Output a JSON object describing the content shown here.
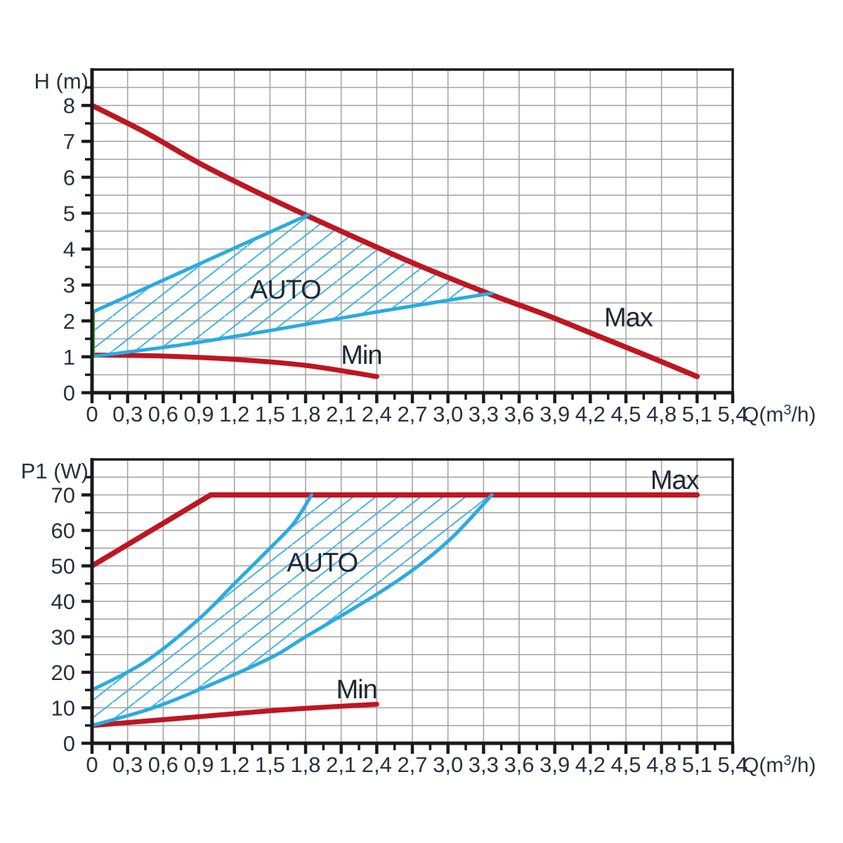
{
  "colors": {
    "red": "#be1622",
    "blue": "#29abe2",
    "hatch": "#41b3e6",
    "green": "#3aaa35",
    "text": "#273140",
    "grid": "#a1a1a0",
    "axis": "#1a1a1a",
    "background": "#ffffff"
  },
  "chart_data": [
    {
      "type": "line",
      "name": "head-vs-flow",
      "ylabel": "H (m)",
      "xlabel": {
        "pre": "Q(m",
        "sup": "3",
        "post": "/h)"
      },
      "legend_position": "none",
      "grid": true,
      "x_axis": {
        "min": 0,
        "max": 5.4,
        "major_step": 0.3,
        "minor_step": 0.15,
        "grid_step": 0.3,
        "tick_labels": [
          "0",
          "0,3",
          "0,6",
          "0,9",
          "1,2",
          "1,5",
          "1,8",
          "2,1",
          "2,4",
          "2,7",
          "3,0",
          "3,3",
          "3,6",
          "3,9",
          "4,2",
          "4,5",
          "4,8",
          "5,1",
          "5,4"
        ]
      },
      "y_axis": {
        "min": 0,
        "max": 9,
        "major_step": 1,
        "minor_step": 0.5,
        "grid_step": 0.5,
        "label_max": 8,
        "tick_labels": [
          "0",
          "1",
          "2",
          "3",
          "4",
          "5",
          "6",
          "7",
          "8"
        ]
      },
      "series": [
        {
          "name": "Max",
          "color": "red",
          "width": 7.5,
          "smooth": true,
          "points": [
            [
              0,
              8.0
            ],
            [
              0.45,
              7.25
            ],
            [
              0.9,
              6.4
            ],
            [
              1.35,
              5.65
            ],
            [
              1.8,
              4.95
            ],
            [
              2.3,
              4.2
            ],
            [
              2.75,
              3.55
            ],
            [
              3.35,
              2.75
            ],
            [
              3.8,
              2.2
            ],
            [
              4.25,
              1.6
            ],
            [
              4.7,
              1.0
            ],
            [
              5.1,
              0.45
            ]
          ]
        },
        {
          "name": "Min",
          "color": "red",
          "width": 7,
          "smooth": true,
          "points": [
            [
              0,
              1.05
            ],
            [
              0.6,
              1.02
            ],
            [
              1.2,
              0.93
            ],
            [
              1.8,
              0.76
            ],
            [
              2.4,
              0.45
            ]
          ]
        },
        {
          "name": "auto-upper",
          "color": "blue",
          "width": 5,
          "smooth": false,
          "points": [
            [
              0,
              2.24
            ],
            [
              0.9,
              3.58
            ],
            [
              1.82,
              4.95
            ]
          ]
        },
        {
          "name": "auto-lower",
          "color": "blue",
          "width": 5,
          "smooth": true,
          "points": [
            [
              0.03,
              1.02
            ],
            [
              0.75,
              1.33
            ],
            [
              1.5,
              1.73
            ],
            [
              2.4,
              2.25
            ],
            [
              3.37,
              2.77
            ]
          ]
        },
        {
          "name": "auto-left-edge",
          "color": "green",
          "width": 3,
          "smooth": false,
          "points": [
            [
              0.015,
              1.05
            ],
            [
              0.015,
              2.22
            ]
          ]
        }
      ],
      "auto_region": {
        "points": [
          [
            0.015,
            1.03
          ],
          [
            0.75,
            1.33
          ],
          [
            1.5,
            1.73
          ],
          [
            2.4,
            2.25
          ],
          [
            3.37,
            2.77
          ],
          [
            3.0,
            3.2
          ],
          [
            2.6,
            3.77
          ],
          [
            2.2,
            4.33
          ],
          [
            1.82,
            4.95
          ],
          [
            0.9,
            3.58
          ],
          [
            0.015,
            2.24
          ]
        ]
      },
      "labels": [
        {
          "text": "AUTO",
          "x": 1.63,
          "y": 2.88,
          "size": 38
        },
        {
          "text": "Max",
          "x": 4.52,
          "y": 2.1,
          "size": 38
        },
        {
          "text": "Min",
          "x": 2.27,
          "y": 1.06,
          "size": 38
        }
      ]
    },
    {
      "type": "line",
      "name": "power-vs-flow",
      "ylabel": "P1 (W)",
      "xlabel": {
        "pre": "Q(m",
        "sup": "3",
        "post": "/h)"
      },
      "legend_position": "none",
      "grid": true,
      "x_axis": {
        "min": 0,
        "max": 5.4,
        "major_step": 0.3,
        "minor_step": 0.15,
        "grid_step": 0.3,
        "tick_labels": [
          "0",
          "0,3",
          "0,6",
          "0,9",
          "1,2",
          "1,5",
          "1,8",
          "2,1",
          "2,4",
          "2,7",
          "3,0",
          "3,3",
          "3,6",
          "3,9",
          "4,2",
          "4,5",
          "4,8",
          "5,1",
          "5,4"
        ]
      },
      "y_axis": {
        "min": 0,
        "max": 80,
        "major_step": 10,
        "minor_step": 5,
        "grid_step": 5,
        "label_max": 70,
        "tick_labels": [
          "0",
          "10",
          "20",
          "30",
          "40",
          "50",
          "60",
          "70"
        ]
      },
      "series": [
        {
          "name": "Max",
          "color": "red",
          "width": 7.5,
          "smooth": false,
          "points": [
            [
              0,
              50
            ],
            [
              1.0,
              70
            ],
            [
              5.1,
              70
            ]
          ]
        },
        {
          "name": "Min",
          "color": "red",
          "width": 7,
          "smooth": true,
          "points": [
            [
              0,
              5
            ],
            [
              0.8,
              7.2
            ],
            [
              1.6,
              9.4
            ],
            [
              2.4,
              11
            ]
          ]
        },
        {
          "name": "auto-upper",
          "color": "blue",
          "width": 5,
          "smooth": true,
          "points": [
            [
              0,
              15
            ],
            [
              0.45,
              23
            ],
            [
              0.9,
              35
            ],
            [
              1.2,
              45
            ],
            [
              1.5,
              55
            ],
            [
              1.7,
              62
            ],
            [
              1.85,
              70
            ]
          ]
        },
        {
          "name": "auto-lower",
          "color": "blue",
          "width": 5,
          "smooth": true,
          "points": [
            [
              0,
              5
            ],
            [
              0.5,
              9.8
            ],
            [
              0.93,
              15.5
            ],
            [
              1.5,
              24
            ],
            [
              1.8,
              30
            ],
            [
              2.4,
              42
            ],
            [
              2.75,
              50
            ],
            [
              3.05,
              58.5
            ],
            [
              3.37,
              70
            ]
          ]
        }
      ],
      "auto_region": {
        "points": [
          [
            0,
            5
          ],
          [
            0.5,
            9.8
          ],
          [
            0.93,
            15.5
          ],
          [
            1.5,
            24
          ],
          [
            1.8,
            30
          ],
          [
            2.4,
            42
          ],
          [
            2.75,
            50
          ],
          [
            3.05,
            58.5
          ],
          [
            3.37,
            70
          ],
          [
            1.85,
            70
          ],
          [
            1.7,
            62
          ],
          [
            1.5,
            55
          ],
          [
            1.2,
            45
          ],
          [
            0.9,
            35
          ],
          [
            0.45,
            23
          ],
          [
            0,
            15
          ]
        ]
      },
      "labels": [
        {
          "text": "AUTO",
          "x": 1.94,
          "y": 51,
          "size": 38
        },
        {
          "text": "Max",
          "x": 4.91,
          "y": 74.3,
          "size": 38
        },
        {
          "text": "Min",
          "x": 2.23,
          "y": 15.2,
          "size": 38
        }
      ]
    }
  ]
}
